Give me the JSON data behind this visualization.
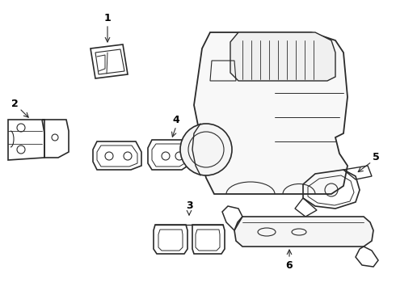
{
  "background_color": "#ffffff",
  "line_color": "#2a2a2a",
  "figsize": [
    4.9,
    3.6
  ],
  "dpi": 100
}
